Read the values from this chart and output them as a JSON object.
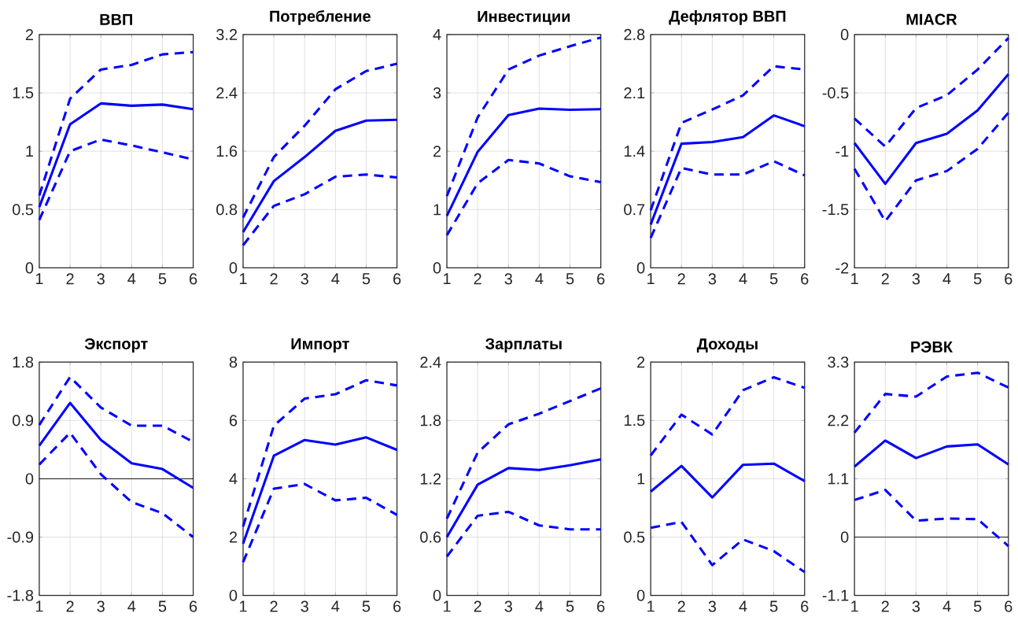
{
  "chart_data": [
    {
      "type": "line",
      "title": "ВВП",
      "x": [
        1,
        2,
        3,
        4,
        5,
        6
      ],
      "xlim": [
        1,
        6
      ],
      "xticks": [
        1,
        2,
        3,
        4,
        5,
        6
      ],
      "ylim": [
        0,
        2
      ],
      "yticks": [
        0,
        0.5,
        1,
        1.5,
        2
      ],
      "grid": true,
      "series": [
        {
          "color": "#0000ff",
          "line_style": "dashed",
          "values": [
            0.62,
            1.45,
            1.7,
            1.74,
            1.83,
            1.85
          ]
        },
        {
          "color": "#0000ff",
          "line_style": "solid",
          "values": [
            0.52,
            1.23,
            1.41,
            1.39,
            1.4,
            1.36
          ]
        },
        {
          "color": "#0000ff",
          "line_style": "dashed",
          "values": [
            0.41,
            1.0,
            1.1,
            1.05,
            0.99,
            0.93
          ]
        }
      ]
    },
    {
      "type": "line",
      "title": "Потребление",
      "x": [
        1,
        2,
        3,
        4,
        5,
        6
      ],
      "xlim": [
        1,
        6
      ],
      "xticks": [
        1,
        2,
        3,
        4,
        5,
        6
      ],
      "ylim": [
        0,
        3.2
      ],
      "yticks": [
        0,
        0.8,
        1.6,
        2.4,
        3.2
      ],
      "grid": true,
      "series": [
        {
          "color": "#0000ff",
          "line_style": "dashed",
          "values": [
            0.69,
            1.52,
            1.95,
            2.45,
            2.7,
            2.8
          ]
        },
        {
          "color": "#0000ff",
          "line_style": "solid",
          "values": [
            0.49,
            1.19,
            1.52,
            1.88,
            2.02,
            2.03
          ]
        },
        {
          "color": "#0000ff",
          "line_style": "dashed",
          "values": [
            0.31,
            0.85,
            1.01,
            1.25,
            1.28,
            1.24
          ]
        }
      ]
    },
    {
      "type": "line",
      "title": "Инвестиции",
      "x": [
        1,
        2,
        3,
        4,
        5,
        6
      ],
      "xlim": [
        1,
        6
      ],
      "xticks": [
        1,
        2,
        3,
        4,
        5,
        6
      ],
      "ylim": [
        0,
        4
      ],
      "yticks": [
        0,
        1,
        2,
        3,
        4
      ],
      "grid": true,
      "series": [
        {
          "color": "#0000ff",
          "line_style": "dashed",
          "values": [
            1.23,
            2.58,
            3.4,
            3.64,
            3.8,
            3.95
          ]
        },
        {
          "color": "#0000ff",
          "line_style": "solid",
          "values": [
            0.89,
            1.99,
            2.62,
            2.73,
            2.71,
            2.72
          ]
        },
        {
          "color": "#0000ff",
          "line_style": "dashed",
          "values": [
            0.56,
            1.45,
            1.85,
            1.79,
            1.57,
            1.47
          ]
        }
      ]
    },
    {
      "type": "line",
      "title": "Дефлятор ВВП",
      "x": [
        1,
        2,
        3,
        4,
        5,
        6
      ],
      "xlim": [
        1,
        6
      ],
      "xticks": [
        1,
        2,
        3,
        4,
        5,
        6
      ],
      "ylim": [
        0,
        2.8
      ],
      "yticks": [
        0,
        0.7,
        1.4,
        2.1,
        2.8
      ],
      "grid": true,
      "series": [
        {
          "color": "#0000ff",
          "line_style": "dashed",
          "values": [
            0.69,
            1.74,
            1.9,
            2.07,
            2.42,
            2.38
          ]
        },
        {
          "color": "#0000ff",
          "line_style": "solid",
          "values": [
            0.52,
            1.49,
            1.51,
            1.57,
            1.83,
            1.7
          ]
        },
        {
          "color": "#0000ff",
          "line_style": "dashed",
          "values": [
            0.36,
            1.2,
            1.12,
            1.12,
            1.28,
            1.11
          ]
        }
      ]
    },
    {
      "type": "line",
      "title": "MIACR",
      "x": [
        1,
        2,
        3,
        4,
        5,
        6
      ],
      "xlim": [
        1,
        6
      ],
      "xticks": [
        1,
        2,
        3,
        4,
        5,
        6
      ],
      "ylim": [
        -2,
        0
      ],
      "yticks": [
        -2,
        -1.5,
        -1,
        -0.5,
        0
      ],
      "grid": true,
      "series": [
        {
          "color": "#0000ff",
          "line_style": "dashed",
          "values": [
            -0.72,
            -0.96,
            -0.63,
            -0.52,
            -0.3,
            -0.03
          ]
        },
        {
          "color": "#0000ff",
          "line_style": "solid",
          "values": [
            -0.93,
            -1.28,
            -0.93,
            -0.85,
            -0.65,
            -0.34
          ]
        },
        {
          "color": "#0000ff",
          "line_style": "dashed",
          "values": [
            -1.15,
            -1.6,
            -1.25,
            -1.17,
            -0.98,
            -0.67
          ]
        }
      ]
    },
    {
      "type": "line",
      "title": "Экспорт",
      "x": [
        1,
        2,
        3,
        4,
        5,
        6
      ],
      "xlim": [
        1,
        6
      ],
      "xticks": [
        1,
        2,
        3,
        4,
        5,
        6
      ],
      "ylim": [
        -1.8,
        1.8
      ],
      "yticks": [
        -1.8,
        -0.9,
        0,
        0.9,
        1.8
      ],
      "grid": true,
      "ref_lines": [
        {
          "axis": "y",
          "value": 0,
          "color": "#000000"
        }
      ],
      "series": [
        {
          "color": "#0000ff",
          "line_style": "dashed",
          "values": [
            0.83,
            1.57,
            1.1,
            0.82,
            0.82,
            0.57
          ]
        },
        {
          "color": "#0000ff",
          "line_style": "solid",
          "values": [
            0.51,
            1.17,
            0.6,
            0.24,
            0.15,
            -0.14
          ]
        },
        {
          "color": "#0000ff",
          "line_style": "dashed",
          "values": [
            0.22,
            0.71,
            0.07,
            -0.36,
            -0.53,
            -0.9
          ]
        }
      ]
    },
    {
      "type": "line",
      "title": "Импорт",
      "x": [
        1,
        2,
        3,
        4,
        5,
        6
      ],
      "xlim": [
        1,
        6
      ],
      "xticks": [
        1,
        2,
        3,
        4,
        5,
        6
      ],
      "ylim": [
        0,
        8
      ],
      "yticks": [
        0,
        2,
        4,
        6,
        8
      ],
      "grid": true,
      "series": [
        {
          "color": "#0000ff",
          "line_style": "dashed",
          "values": [
            2.36,
            5.82,
            6.75,
            6.9,
            7.38,
            7.2
          ]
        },
        {
          "color": "#0000ff",
          "line_style": "solid",
          "values": [
            1.77,
            4.79,
            5.33,
            5.17,
            5.42,
            4.99
          ]
        },
        {
          "color": "#0000ff",
          "line_style": "dashed",
          "values": [
            1.14,
            3.66,
            3.82,
            3.26,
            3.35,
            2.76
          ]
        }
      ]
    },
    {
      "type": "line",
      "title": "Зарплаты",
      "x": [
        1,
        2,
        3,
        4,
        5,
        6
      ],
      "xlim": [
        1,
        6
      ],
      "xticks": [
        1,
        2,
        3,
        4,
        5,
        6
      ],
      "ylim": [
        0,
        2.4
      ],
      "yticks": [
        0,
        0.6,
        1.2,
        1.8,
        2.4
      ],
      "grid": true,
      "series": [
        {
          "color": "#0000ff",
          "line_style": "dashed",
          "values": [
            0.79,
            1.47,
            1.76,
            1.87,
            2.0,
            2.13
          ]
        },
        {
          "color": "#0000ff",
          "line_style": "solid",
          "values": [
            0.6,
            1.14,
            1.31,
            1.29,
            1.34,
            1.4
          ]
        },
        {
          "color": "#0000ff",
          "line_style": "dashed",
          "values": [
            0.4,
            0.82,
            0.86,
            0.72,
            0.68,
            0.68
          ]
        }
      ]
    },
    {
      "type": "line",
      "title": "Доходы",
      "x": [
        1,
        2,
        3,
        4,
        5,
        6
      ],
      "xlim": [
        1,
        6
      ],
      "xticks": [
        1,
        2,
        3,
        4,
        5,
        6
      ],
      "ylim": [
        0,
        2
      ],
      "yticks": [
        0,
        0.5,
        1,
        1.5,
        2
      ],
      "grid": true,
      "series": [
        {
          "color": "#0000ff",
          "line_style": "dashed",
          "values": [
            1.2,
            1.55,
            1.38,
            1.76,
            1.87,
            1.78
          ]
        },
        {
          "color": "#0000ff",
          "line_style": "solid",
          "values": [
            0.89,
            1.11,
            0.84,
            1.12,
            1.13,
            0.98
          ]
        },
        {
          "color": "#0000ff",
          "line_style": "dashed",
          "values": [
            0.58,
            0.63,
            0.26,
            0.48,
            0.38,
            0.2
          ]
        }
      ]
    },
    {
      "type": "line",
      "title": "РЭВК",
      "x": [
        1,
        2,
        3,
        4,
        5,
        6
      ],
      "xlim": [
        1,
        6
      ],
      "xticks": [
        1,
        2,
        3,
        4,
        5,
        6
      ],
      "ylim": [
        -1.1,
        3.3
      ],
      "yticks": [
        -1.1,
        0,
        1.1,
        2.2,
        3.3
      ],
      "grid": true,
      "ref_lines": [
        {
          "axis": "y",
          "value": 0,
          "color": "#000000"
        }
      ],
      "series": [
        {
          "color": "#0000ff",
          "line_style": "dashed",
          "values": [
            1.97,
            2.7,
            2.65,
            3.03,
            3.1,
            2.82
          ]
        },
        {
          "color": "#0000ff",
          "line_style": "solid",
          "values": [
            1.33,
            1.82,
            1.49,
            1.71,
            1.75,
            1.37
          ]
        },
        {
          "color": "#0000ff",
          "line_style": "dashed",
          "values": [
            0.7,
            0.89,
            0.31,
            0.35,
            0.34,
            -0.17
          ]
        }
      ]
    }
  ]
}
